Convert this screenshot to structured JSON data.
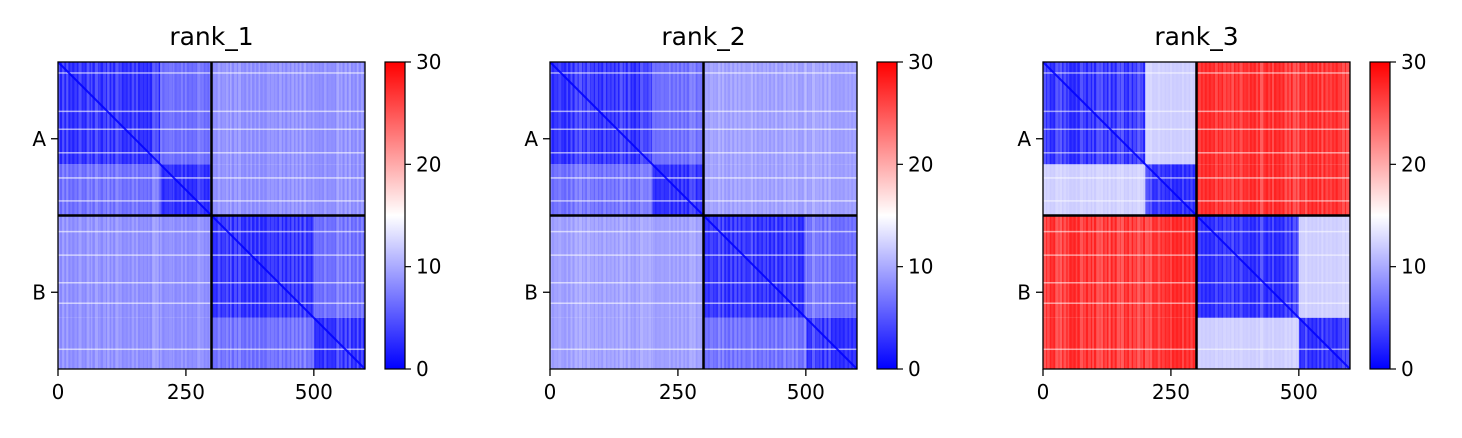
{
  "colormap": {
    "name": "bwr",
    "stops": [
      "#0000ff",
      "#ffffff",
      "#ff0000"
    ],
    "vmin": 0,
    "vmax": 30,
    "ticks": [
      "0",
      "10",
      "20",
      "30"
    ]
  },
  "chart_data": [
    {
      "type": "heatmap",
      "title": "rank_1",
      "x_ticks": [
        "0",
        "250",
        "500"
      ],
      "x_tick_values": [
        0,
        250,
        500
      ],
      "xlim": [
        0,
        600
      ],
      "y_tick_labels": [
        "A",
        "B"
      ],
      "chains": [
        "A",
        "B"
      ],
      "chain_boundary": 300,
      "domain_splits": [
        200,
        500
      ],
      "values": {
        "intra_domain": 2,
        "intra_chain_cross_domain": 6,
        "inter_chain": 8
      },
      "colorbar": {
        "min": 0,
        "max": 30,
        "ticks": [
          "0",
          "10",
          "20",
          "30"
        ]
      }
    },
    {
      "type": "heatmap",
      "title": "rank_2",
      "x_ticks": [
        "0",
        "250",
        "500"
      ],
      "x_tick_values": [
        0,
        250,
        500
      ],
      "xlim": [
        0,
        600
      ],
      "y_tick_labels": [
        "A",
        "B"
      ],
      "chains": [
        "A",
        "B"
      ],
      "chain_boundary": 300,
      "domain_splits": [
        200,
        500
      ],
      "values": {
        "intra_domain": 2,
        "intra_chain_cross_domain": 6,
        "inter_chain": 9
      },
      "colorbar": {
        "min": 0,
        "max": 30,
        "ticks": [
          "0",
          "10",
          "20",
          "30"
        ]
      }
    },
    {
      "type": "heatmap",
      "title": "rank_3",
      "x_ticks": [
        "0",
        "250",
        "500"
      ],
      "x_tick_values": [
        0,
        250,
        500
      ],
      "xlim": [
        0,
        600
      ],
      "y_tick_labels": [
        "A",
        "B"
      ],
      "chains": [
        "A",
        "B"
      ],
      "chain_boundary": 300,
      "domain_splits": [
        200,
        500
      ],
      "values": {
        "intra_domain": 2,
        "intra_chain_cross_domain": 12,
        "inter_chain": 28
      },
      "colorbar": {
        "min": 0,
        "max": 30,
        "ticks": [
          "0",
          "10",
          "20",
          "30"
        ]
      }
    }
  ]
}
